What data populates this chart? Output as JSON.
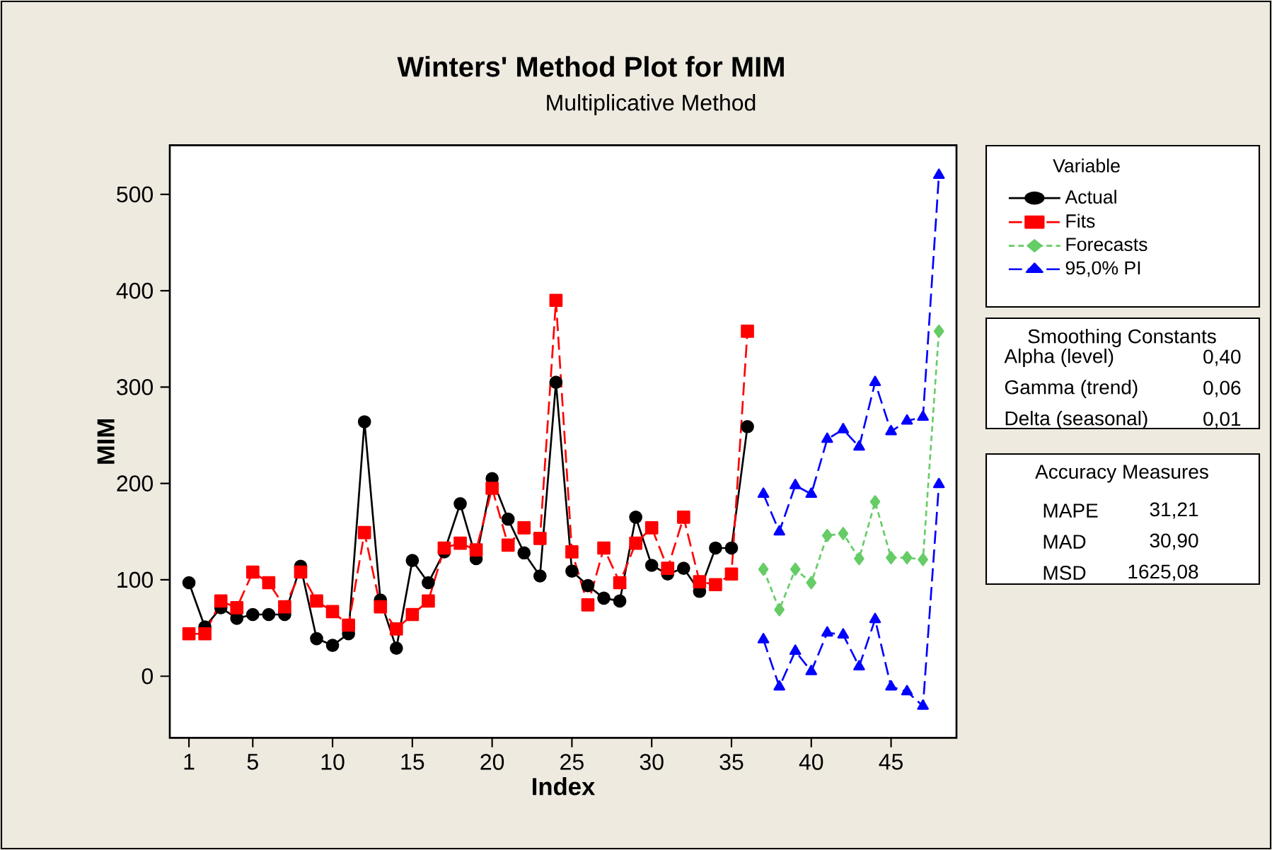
{
  "chart_data": {
    "type": "line",
    "title": "Winters' Method Plot for MIM",
    "subtitle": "Multiplicative Method",
    "xlabel": "Index",
    "ylabel": "MIM",
    "legend_title": "Variable",
    "legend": "right",
    "grid": false,
    "xlim": [
      -0.2,
      49.1
    ],
    "ylim": [
      -64,
      551
    ],
    "xticks": [
      1,
      5,
      10,
      15,
      20,
      25,
      30,
      35,
      40,
      45
    ],
    "yticks": [
      0,
      100,
      200,
      300,
      400,
      500
    ],
    "series": [
      {
        "name": "Actual",
        "color": "#000000",
        "marker": "circle",
        "line_style": "solid",
        "x": [
          1,
          2,
          3,
          4,
          5,
          6,
          7,
          8,
          9,
          10,
          11,
          12,
          13,
          14,
          15,
          16,
          17,
          18,
          19,
          20,
          21,
          22,
          23,
          24,
          25,
          26,
          27,
          28,
          29,
          30,
          31,
          32,
          33,
          34,
          35,
          36
        ],
        "values": [
          97,
          51,
          71,
          60,
          64,
          64,
          64,
          114,
          39,
          32,
          44,
          264,
          79,
          29,
          120,
          97,
          129,
          179,
          122,
          205,
          163,
          128,
          104,
          305,
          109,
          94,
          81,
          78,
          165,
          115,
          106,
          112,
          88,
          133,
          133,
          259
        ]
      },
      {
        "name": "Fits",
        "color": "#ff0000",
        "marker": "square",
        "line_style": "dashed",
        "x": [
          1,
          2,
          3,
          4,
          5,
          6,
          7,
          8,
          9,
          10,
          11,
          12,
          13,
          14,
          15,
          16,
          17,
          18,
          19,
          20,
          21,
          22,
          23,
          24,
          25,
          26,
          27,
          28,
          29,
          30,
          31,
          32,
          33,
          34,
          35,
          36
        ],
        "values": [
          44,
          44,
          78,
          71,
          108,
          97,
          72,
          108,
          78,
          67,
          53,
          149,
          72,
          49,
          64,
          78,
          133,
          138,
          131,
          195,
          136,
          154,
          143,
          390,
          129,
          74,
          133,
          97,
          138,
          154,
          112,
          165,
          98,
          95,
          106,
          358
        ]
      },
      {
        "name": "Forecasts",
        "color": "#66cc66",
        "marker": "diamond",
        "line_style": "dotted",
        "x": [
          37,
          38,
          39,
          40,
          41,
          42,
          43,
          44,
          45,
          46,
          47,
          48
        ],
        "values": [
          111,
          69,
          111,
          97,
          146,
          148,
          122,
          181,
          123,
          123,
          121,
          358
        ]
      },
      {
        "name": "95,0% PI",
        "color": "#0000ff",
        "marker": "triangle",
        "line_style": "dashed",
        "x": [
          37,
          38,
          39,
          40,
          41,
          42,
          43,
          44,
          45,
          46,
          47,
          48
        ],
        "values": [
          189,
          150,
          198,
          189,
          246,
          256,
          238,
          305,
          254,
          265,
          269,
          520
        ]
      },
      {
        "color": "#0000ff",
        "marker": "triangle",
        "line_style": "dashed",
        "x": [
          37,
          38,
          39,
          40,
          41,
          42,
          43,
          44,
          45,
          46,
          47,
          48
        ],
        "values": [
          38,
          -11,
          26,
          5,
          45,
          43,
          10,
          59,
          -11,
          -16,
          -31,
          199
        ]
      }
    ],
    "annotations": [
      "Smoothing Constants",
      "Alpha (level)",
      "0,40",
      "Gamma (trend)",
      "0,06",
      "Delta (seasonal)",
      "0,01",
      "Accuracy Measures",
      "MAPE",
      "31,21",
      "MAD",
      "30,90",
      "MSD",
      "1625,08"
    ]
  }
}
